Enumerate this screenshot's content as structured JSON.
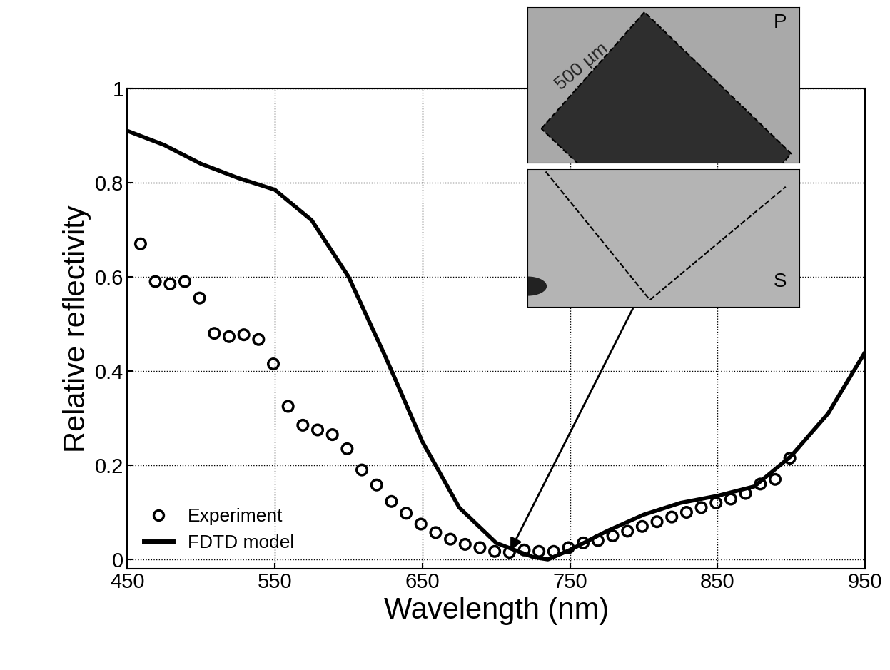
{
  "chart_data": {
    "type": "line",
    "x_label": "Wavelength (nm)",
    "y_label": "Relative reflectivity",
    "xlim": [
      450,
      950
    ],
    "xticks": [
      450,
      550,
      650,
      750,
      850,
      950
    ],
    "ylim": [
      -0.02,
      1
    ],
    "yticks": [
      0,
      0.2,
      0.4,
      0.6,
      0.8,
      1
    ],
    "grid": true,
    "legend": "lower left",
    "series": [
      {
        "name": "Experiment",
        "type": "scatter",
        "marker": "o",
        "color": "#000000",
        "x": [
          459,
          469,
          479,
          489,
          499,
          509,
          519,
          529,
          539,
          549,
          559,
          569,
          579,
          589,
          599,
          609,
          619,
          629,
          639,
          649,
          659,
          669,
          679,
          689,
          699,
          709,
          719,
          729,
          739,
          749,
          759,
          769,
          779,
          789,
          799,
          809,
          819,
          829,
          839,
          849,
          859,
          869,
          879,
          889,
          899
        ],
        "values": [
          0.67,
          0.59,
          0.585,
          0.59,
          0.555,
          0.48,
          0.473,
          0.477,
          0.467,
          0.415,
          0.325,
          0.285,
          0.275,
          0.265,
          0.235,
          0.19,
          0.158,
          0.123,
          0.098,
          0.075,
          0.057,
          0.043,
          0.032,
          0.025,
          0.017,
          0.015,
          0.02,
          0.017,
          0.017,
          0.025,
          0.035,
          0.04,
          0.05,
          0.06,
          0.07,
          0.08,
          0.09,
          0.1,
          0.11,
          0.12,
          0.128,
          0.14,
          0.16,
          0.17,
          0.215
        ]
      },
      {
        "name": "FDTD model",
        "type": "line",
        "line_style": "solid",
        "color": "#000000",
        "x": [
          450,
          475,
          500,
          525,
          550,
          575,
          600,
          625,
          650,
          675,
          700,
          725,
          735,
          750,
          775,
          800,
          825,
          850,
          875,
          900,
          925,
          950
        ],
        "values": [
          0.91,
          0.88,
          0.84,
          0.81,
          0.785,
          0.72,
          0.6,
          0.43,
          0.25,
          0.11,
          0.035,
          0.005,
          0.0,
          0.02,
          0.06,
          0.095,
          0.12,
          0.135,
          0.155,
          0.22,
          0.31,
          0.44
        ]
      }
    ],
    "inset_labels": {
      "scale": "500 µm",
      "top": "P",
      "bottom": "S"
    }
  }
}
